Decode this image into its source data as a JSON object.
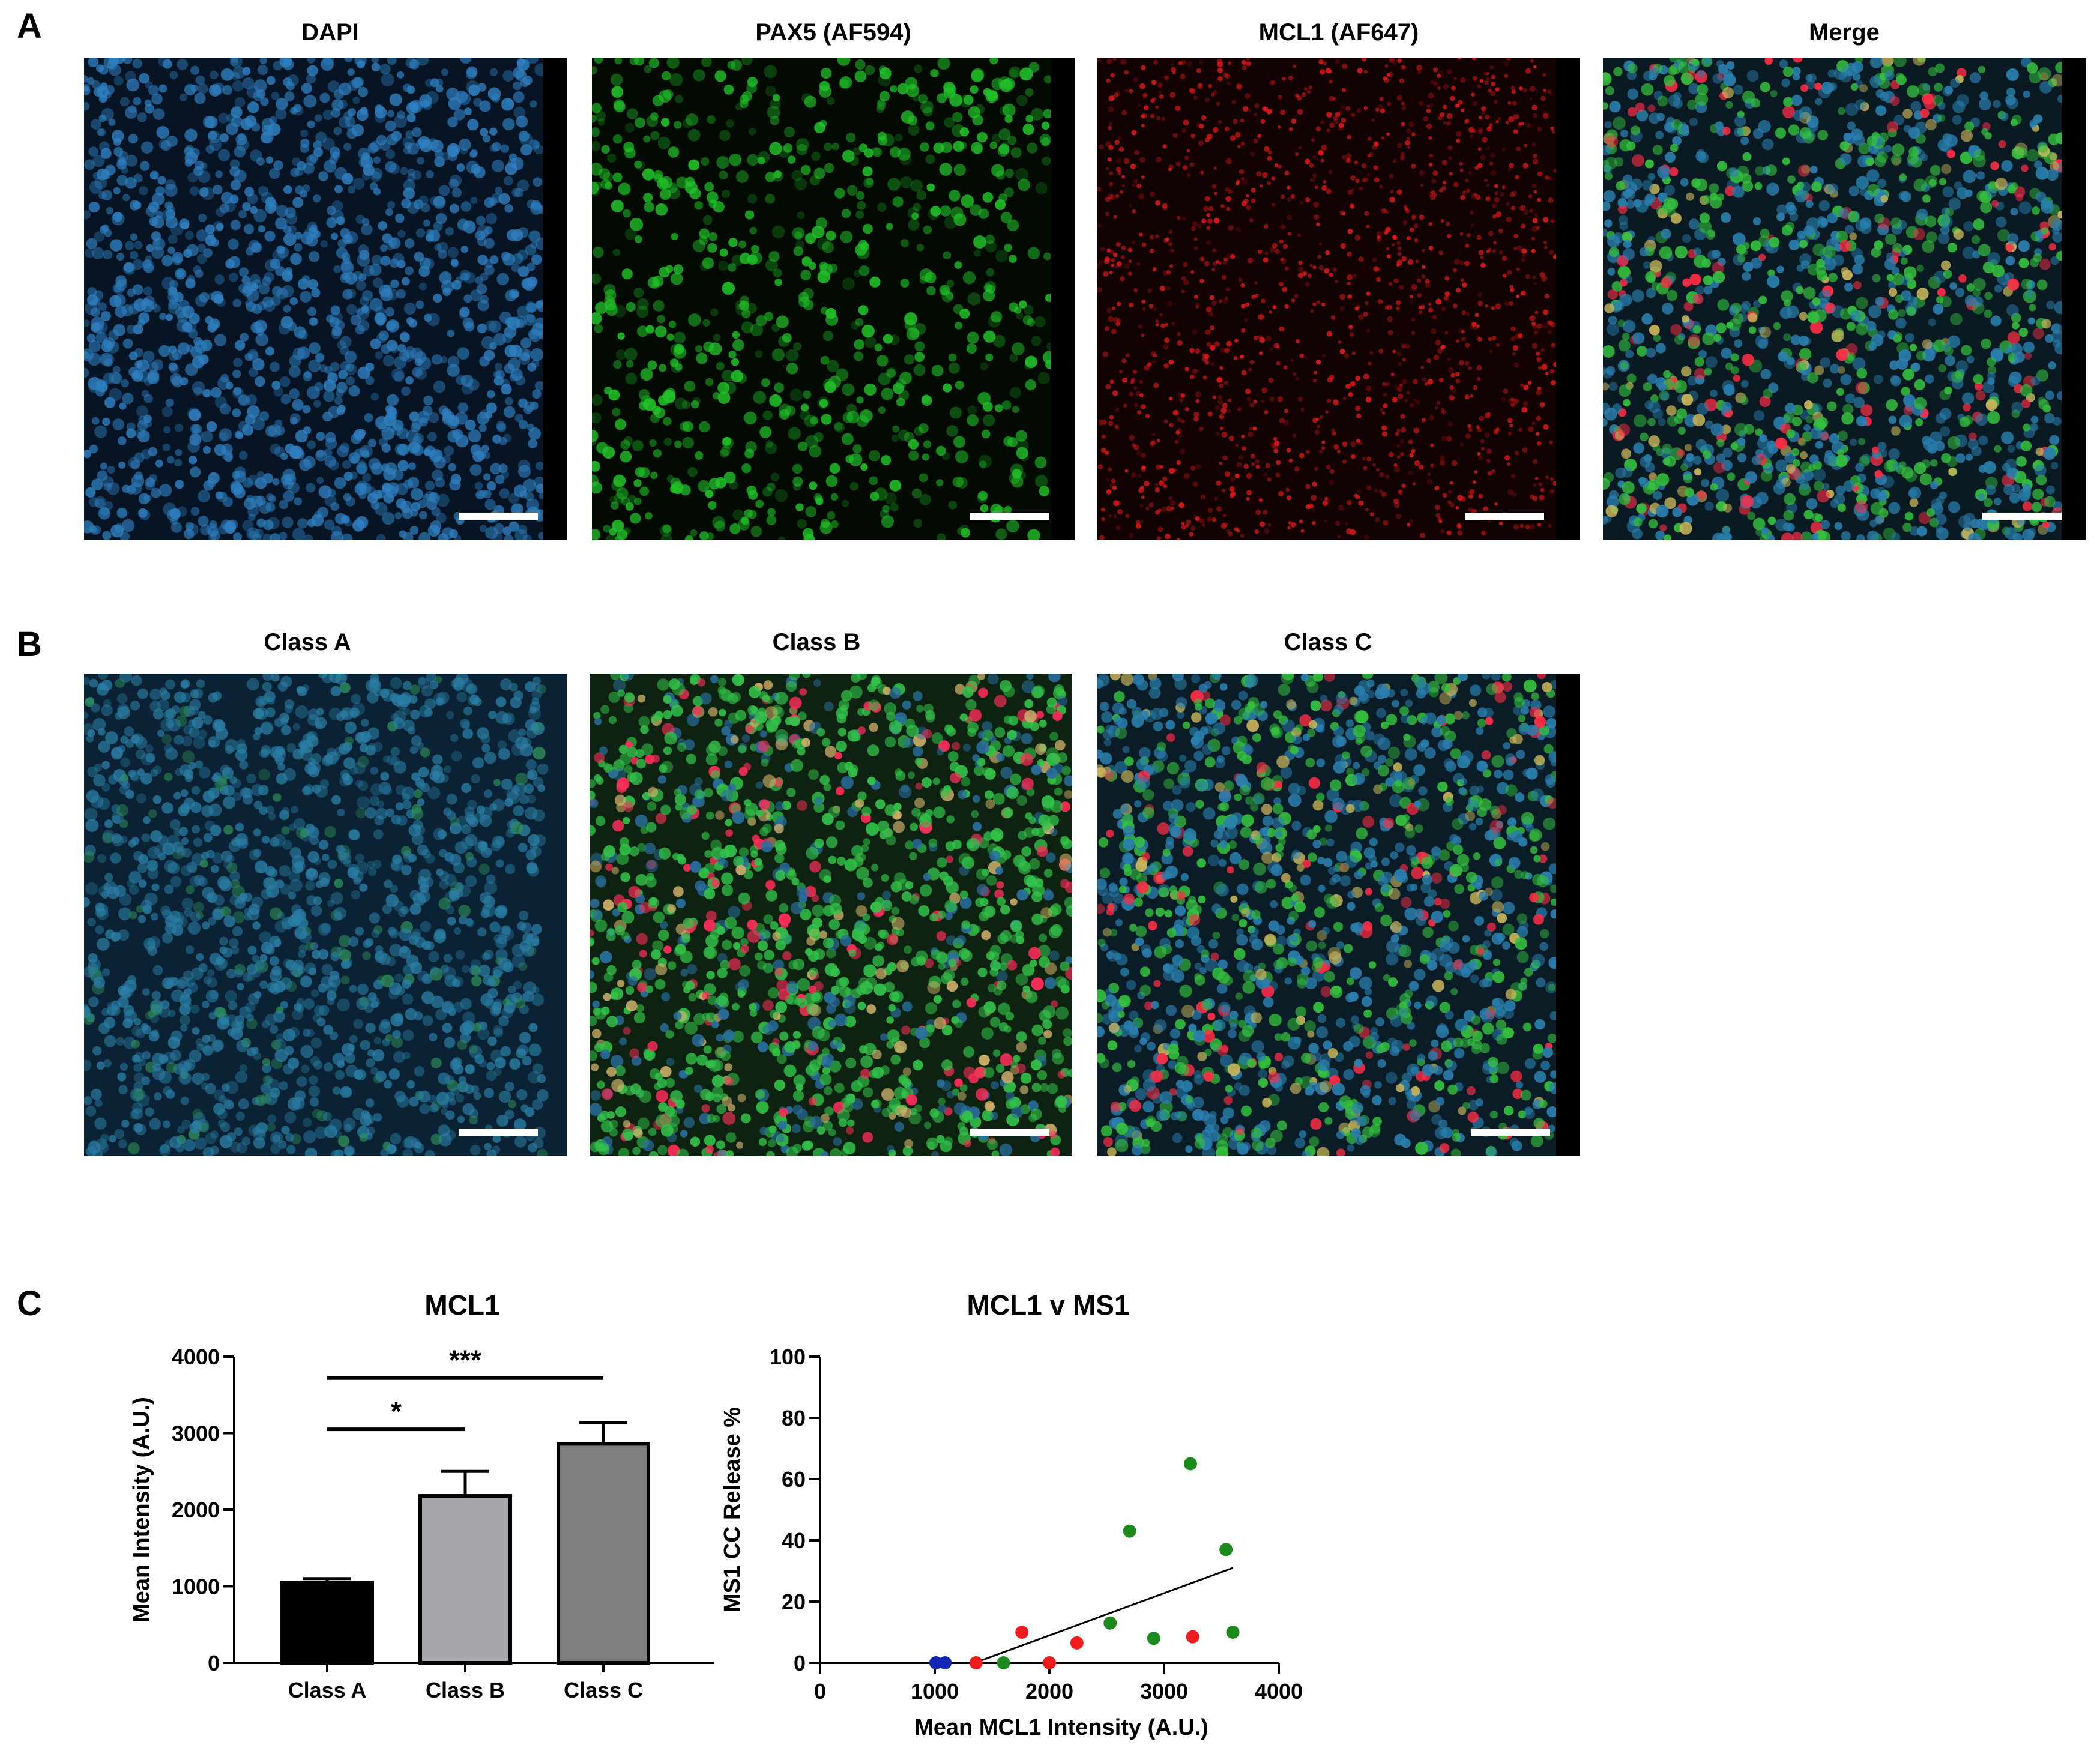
{
  "panels": {
    "a": {
      "letter": "A",
      "images": [
        {
          "title": "DAPI",
          "channel": "dapi"
        },
        {
          "title": "PAX5 (AF594)",
          "channel": "pax5"
        },
        {
          "title": "MCL1 (AF647)",
          "channel": "mcl1"
        },
        {
          "title": "Merge",
          "channel": "merge"
        }
      ]
    },
    "b": {
      "letter": "B",
      "images": [
        {
          "title": "Class A",
          "channel": "classA"
        },
        {
          "title": "Class B",
          "channel": "classB"
        },
        {
          "title": "Class C",
          "channel": "classC"
        }
      ]
    },
    "c": {
      "letter": "C"
    }
  },
  "colors": {
    "dapi": "#2f7fbf",
    "pax5": "#22c22a",
    "mcl1": "#ee1b1b",
    "bar_class_a": "#000000",
    "bar_class_b": "#a6a6ab",
    "bar_class_c": "#7f7f7f",
    "scatter_blue": "#1326b8",
    "scatter_red": "#ee1c1c",
    "scatter_green": "#1d8a1d"
  },
  "chart_data": [
    {
      "type": "bar",
      "title": "MCL1",
      "ylabel": "Mean Intensity (A.U.)",
      "xlabel": "",
      "categories": [
        "Class A",
        "Class B",
        "Class C"
      ],
      "values": [
        1050,
        2180,
        2860
      ],
      "errors": [
        50,
        320,
        280
      ],
      "ylim": [
        0,
        4000
      ],
      "yticks": [
        0,
        1000,
        2000,
        3000,
        4000
      ],
      "significance": [
        {
          "from": "Class A",
          "to": "Class B",
          "label": "*",
          "y": 3050
        },
        {
          "from": "Class A",
          "to": "Class C",
          "label": "***",
          "y": 3720
        }
      ]
    },
    {
      "type": "scatter",
      "title": "MCL1 v MS1",
      "xlabel": "Mean MCL1 Intensity (A.U.)",
      "ylabel": "MS1 CC Release %",
      "xlim": [
        0,
        4000
      ],
      "ylim": [
        0,
        100
      ],
      "xticks": [
        0,
        1000,
        2000,
        3000,
        4000
      ],
      "yticks": [
        0,
        20,
        40,
        60,
        80,
        100
      ],
      "series": [
        {
          "color": "blue",
          "points": [
            [
              1010,
              0
            ],
            [
              1090,
              0
            ]
          ]
        },
        {
          "color": "red",
          "points": [
            [
              1360,
              0
            ],
            [
              1760,
              10
            ],
            [
              2000,
              0
            ],
            [
              2240,
              6.5
            ],
            [
              3250,
              8.5
            ]
          ]
        },
        {
          "color": "green",
          "points": [
            [
              1600,
              0
            ],
            [
              2530,
              13
            ],
            [
              2700,
              43
            ],
            [
              2910,
              8
            ],
            [
              3230,
              65
            ],
            [
              3540,
              37
            ],
            [
              3600,
              10
            ]
          ]
        }
      ],
      "fit_line": {
        "x": [
          1350,
          3600
        ],
        "y": [
          0,
          31
        ]
      }
    }
  ]
}
